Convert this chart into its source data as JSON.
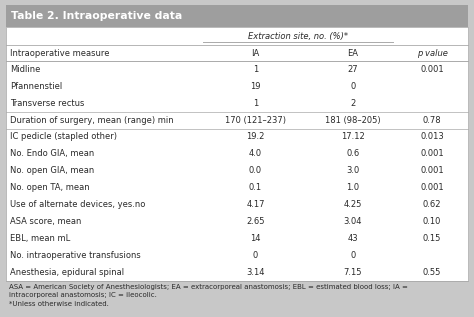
{
  "title": "Table 2. Intraoperative data",
  "header_sub": "Extraction site, no. (%)*",
  "col_headers": [
    "Intraoperative measure",
    "IA",
    "EA",
    "p value"
  ],
  "rows": [
    [
      "Midline",
      "1",
      "27",
      "0.001"
    ],
    [
      "Pfannenstiel",
      "19",
      "0",
      ""
    ],
    [
      "Transverse rectus",
      "1",
      "2",
      ""
    ],
    [
      "Duration of surgery, mean (range) min",
      "170 (121–237)",
      "181 (98–205)",
      "0.78"
    ],
    [
      "IC pedicle (stapled other)",
      "19.2",
      "17.12",
      "0.013"
    ],
    [
      "No. Endo GIA, mean",
      "4.0",
      "0.6",
      "0.001"
    ],
    [
      "No. open GIA, mean",
      "0.0",
      "3.0",
      "0.001"
    ],
    [
      "No. open TA, mean",
      "0.1",
      "1.0",
      "0.001"
    ],
    [
      "Use of alternate devices, yes.no",
      "4.17",
      "4.25",
      "0.62"
    ],
    [
      "ASA score, mean",
      "2.65",
      "3.04",
      "0.10"
    ],
    [
      "EBL, mean mL",
      "14",
      "43",
      "0.15"
    ],
    [
      "No. intraoperative transfusions",
      "0",
      "0",
      ""
    ],
    [
      "Anesthesia, epidural spinal",
      "3.14",
      "7.15",
      "0.55"
    ]
  ],
  "footnote_lines": [
    "ASA = American Society of Anesthesiologists; EA = extracorporeal anastomosis; EBL = estimated blood loss; IA =",
    "intracorporeal anastomosis; IC = ileocolic.",
    "*Unless otherwise indicated."
  ],
  "title_bg": "#9e9e9e",
  "outer_bg": "#c8c8c8",
  "table_bg": "#ffffff",
  "text_color": "#2a2a2a",
  "line_color": "#aaaaaa",
  "font_size": 6.0,
  "title_font_size": 7.8,
  "group_breaks": [
    3,
    4
  ]
}
